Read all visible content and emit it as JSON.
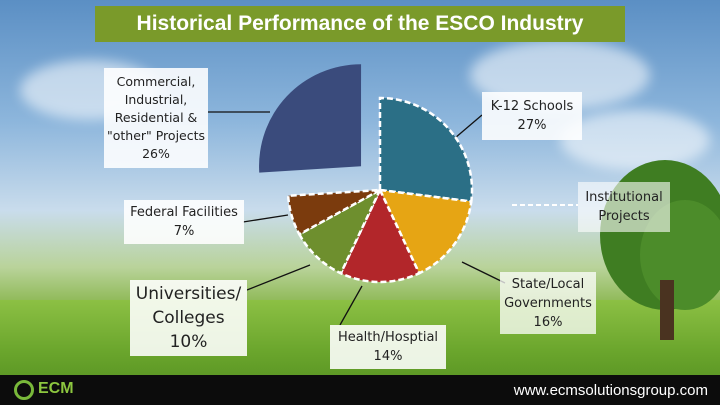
{
  "title": "Historical Performance of the ESCO Industry",
  "chart_data": {
    "type": "pie",
    "title": "Historical Performance of the ESCO Industry",
    "slices": [
      {
        "label": "K-12 Schools",
        "value": 27,
        "value_text": "27%",
        "color": "#2b6f86"
      },
      {
        "label": "State/Local Governments",
        "value": 16,
        "value_text": "16%",
        "color": "#e6a514"
      },
      {
        "label": "Health/Hosptial",
        "value": 14,
        "value_text": "14%",
        "color": "#b2262a"
      },
      {
        "label": "Universities/ Colleges",
        "value": 10,
        "value_text": "10%",
        "color": "#6e8f2e"
      },
      {
        "label": "Federal Facilities",
        "value": 7,
        "value_text": "7%",
        "color": "#7b3b0d"
      },
      {
        "label": "Commercial, Industrial, Residential & \"other\" Projects",
        "value": 26,
        "value_text": "26%",
        "color": "#3a4b7c",
        "exploded": true
      }
    ],
    "callouts": {
      "institutional": "Institutional Projects"
    }
  },
  "labels": {
    "commercial": [
      "Commercial,",
      "Industrial,",
      "Residential &",
      "\"other\" Projects",
      "26%"
    ],
    "k12": [
      "K-12 Schools",
      "27%"
    ],
    "institutional": [
      "Institutional",
      "Projects"
    ],
    "federal": [
      "Federal Facilities",
      "7%"
    ],
    "universities": [
      "Universities/",
      "Colleges",
      "10%"
    ],
    "health": [
      "Health/Hosptial",
      "14%"
    ],
    "state": [
      "State/Local",
      "Governments",
      "16%"
    ]
  },
  "footer": {
    "logo": "ECM",
    "url": "www.ecmsolutionsgroup.com"
  }
}
